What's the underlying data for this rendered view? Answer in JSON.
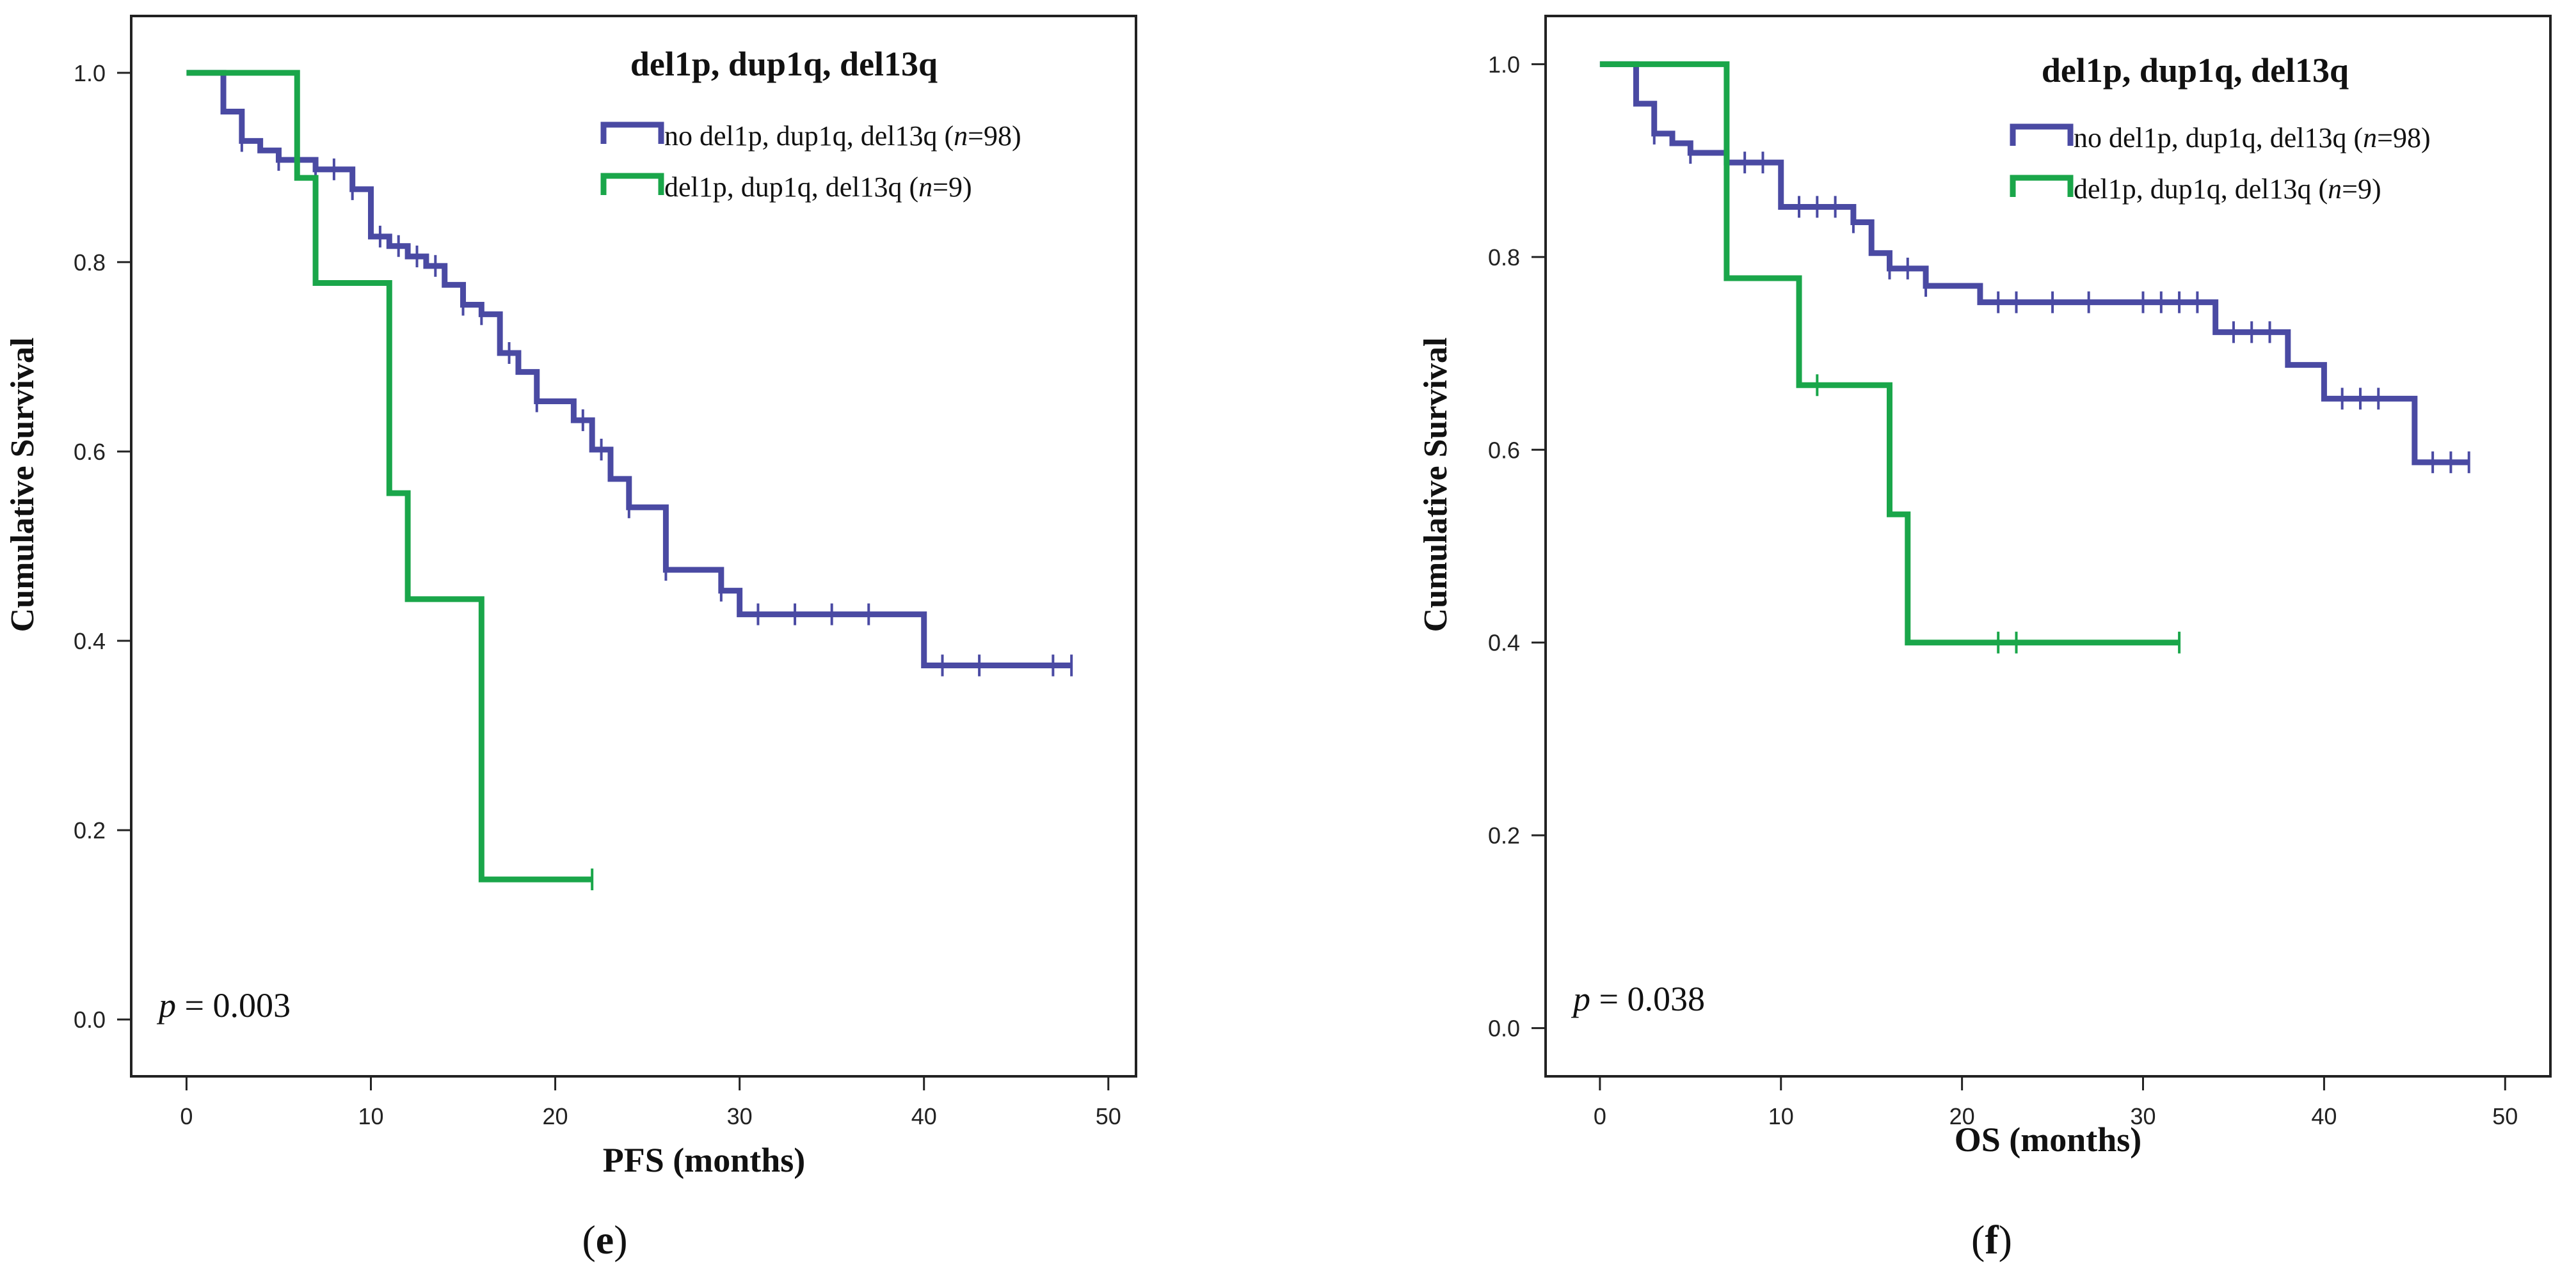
{
  "colors": {
    "series_no": "#4a4aa3",
    "series_yes": "#1aa64a",
    "axis": "#222222"
  },
  "chart_data": [
    {
      "type": "line",
      "step": true,
      "panel_label": "e",
      "title": "del1p, dup1q, del13q",
      "xlabel": "PFS (months)",
      "ylabel": "Cumulative  Survival",
      "xlim": [
        -3,
        51.5
      ],
      "ylim": [
        -0.06,
        1.06
      ],
      "xticks": [
        0,
        10,
        20,
        30,
        40,
        50
      ],
      "yticks": [
        0.0,
        0.2,
        0.4,
        0.6,
        0.8,
        1.0
      ],
      "p_prefix": "p",
      "p_value": " = 0.003",
      "series": [
        {
          "name_text": "no del1p, dup1q, del13q (",
          "name_n": "n",
          "name_end": "=98)",
          "color": "#4a4aa3",
          "x": [
            0,
            2,
            3,
            4,
            5,
            7,
            9,
            10,
            11,
            12,
            13,
            14,
            15,
            16,
            17,
            18,
            19,
            21,
            22,
            23,
            24,
            26,
            28,
            29,
            30,
            31,
            40,
            42
          ],
          "y": [
            1.0,
            0.959,
            0.928,
            0.918,
            0.908,
            0.898,
            0.877,
            0.827,
            0.817,
            0.806,
            0.796,
            0.776,
            0.755,
            0.745,
            0.704,
            0.684,
            0.653,
            0.633,
            0.602,
            0.571,
            0.541,
            0.475,
            0.475,
            0.453,
            0.428,
            0.428,
            0.374,
            0.374
          ],
          "censor_x": [
            3,
            5,
            7,
            8,
            9,
            10.5,
            11.5,
            12.5,
            13.5,
            15,
            16,
            17.5,
            19,
            21.5,
            22.5,
            24,
            26,
            29,
            31,
            33,
            35,
            37,
            41,
            43,
            47,
            48
          ],
          "end_x": 48
        },
        {
          "name_text": "del1p, dup1q, del13q (",
          "name_n": "n",
          "name_end": "=9)",
          "color": "#1aa64a",
          "x": [
            0,
            6,
            7,
            11,
            12,
            16
          ],
          "y": [
            1.0,
            0.889,
            0.778,
            0.556,
            0.444,
            0.148
          ],
          "censor_x": [
            22
          ],
          "end_x": 22
        }
      ]
    },
    {
      "type": "line",
      "step": true,
      "panel_label": "f",
      "title": "del1p, dup1q, del13q",
      "xlabel": "OS (months)",
      "ylabel": "Cumulative Survival",
      "xlim": [
        -3,
        52.5
      ],
      "ylim": [
        -0.05,
        1.05
      ],
      "xticks": [
        0,
        10,
        20,
        30,
        40,
        50
      ],
      "yticks": [
        0.0,
        0.2,
        0.4,
        0.6,
        0.8,
        1.0
      ],
      "p_prefix": "p",
      "p_value": " = 0.038",
      "series": [
        {
          "name_text": "no del1p, dup1q, del13q (",
          "name_n": "n",
          "name_end": "=98)",
          "color": "#4a4aa3",
          "x": [
            0,
            2,
            3,
            4,
            5,
            7,
            10,
            14,
            15,
            16,
            18,
            21,
            34,
            36,
            38,
            40,
            45
          ],
          "y": [
            1.0,
            0.959,
            0.928,
            0.918,
            0.908,
            0.898,
            0.852,
            0.836,
            0.804,
            0.788,
            0.77,
            0.753,
            0.722,
            0.722,
            0.688,
            0.653,
            0.587
          ],
          "censor_x": [
            3,
            5,
            7,
            8,
            9,
            11,
            12,
            13,
            14,
            16,
            17,
            18,
            22,
            23,
            25,
            27,
            30,
            31,
            32,
            33,
            35,
            36,
            37,
            41,
            42,
            43,
            46,
            47,
            48
          ],
          "end_x": 48
        },
        {
          "name_text": "del1p, dup1q, del13q (",
          "name_n": "n",
          "name_end": "=9)",
          "color": "#1aa64a",
          "x": [
            0,
            7,
            11,
            16,
            17
          ],
          "y": [
            1.0,
            0.778,
            0.667,
            0.533,
            0.4
          ],
          "censor_x": [
            12,
            22,
            23,
            32
          ],
          "end_x": 32
        }
      ]
    }
  ]
}
